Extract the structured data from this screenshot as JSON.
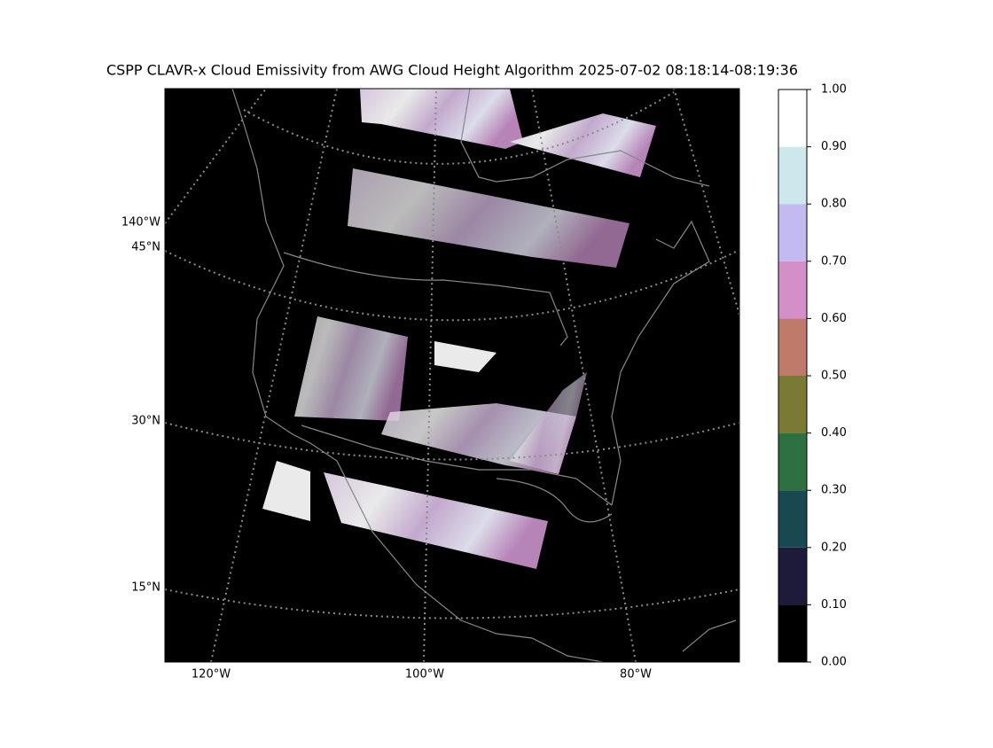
{
  "map": {
    "title": "CSPP CLAVR-x Cloud Emissivity from AWG Cloud Height Algorithm 2025-07-02 08:18:14-08:19:36",
    "lon_labels": [
      "120°W",
      "100°W",
      "80°W"
    ],
    "left_labels": [
      "140°W",
      "45°N",
      "30°N",
      "15°N"
    ]
  },
  "colorbar": {
    "ticks": [
      {
        "value": 0,
        "label": "0.00"
      },
      {
        "value": 0.1,
        "label": "0.10"
      },
      {
        "value": 0.2,
        "label": "0.20"
      },
      {
        "value": 0.3,
        "label": "0.30"
      },
      {
        "value": 0.4,
        "label": "0.40"
      },
      {
        "value": 0.5,
        "label": "0.50"
      },
      {
        "value": 0.6,
        "label": "0.60"
      },
      {
        "value": 0.7,
        "label": "0.70"
      },
      {
        "value": 0.8,
        "label": "0.80"
      },
      {
        "value": 0.9,
        "label": "0.90"
      },
      {
        "value": 1,
        "label": "1.00"
      }
    ],
    "lim": [
      0,
      1
    ],
    "colors": [
      "#000000",
      "#1e1a3a",
      "#184850",
      "#2e7040",
      "#7a7a35",
      "#c07a6a",
      "#d48fc8",
      "#c2baf0",
      "#cce8ec",
      "#ffffff"
    ]
  }
}
